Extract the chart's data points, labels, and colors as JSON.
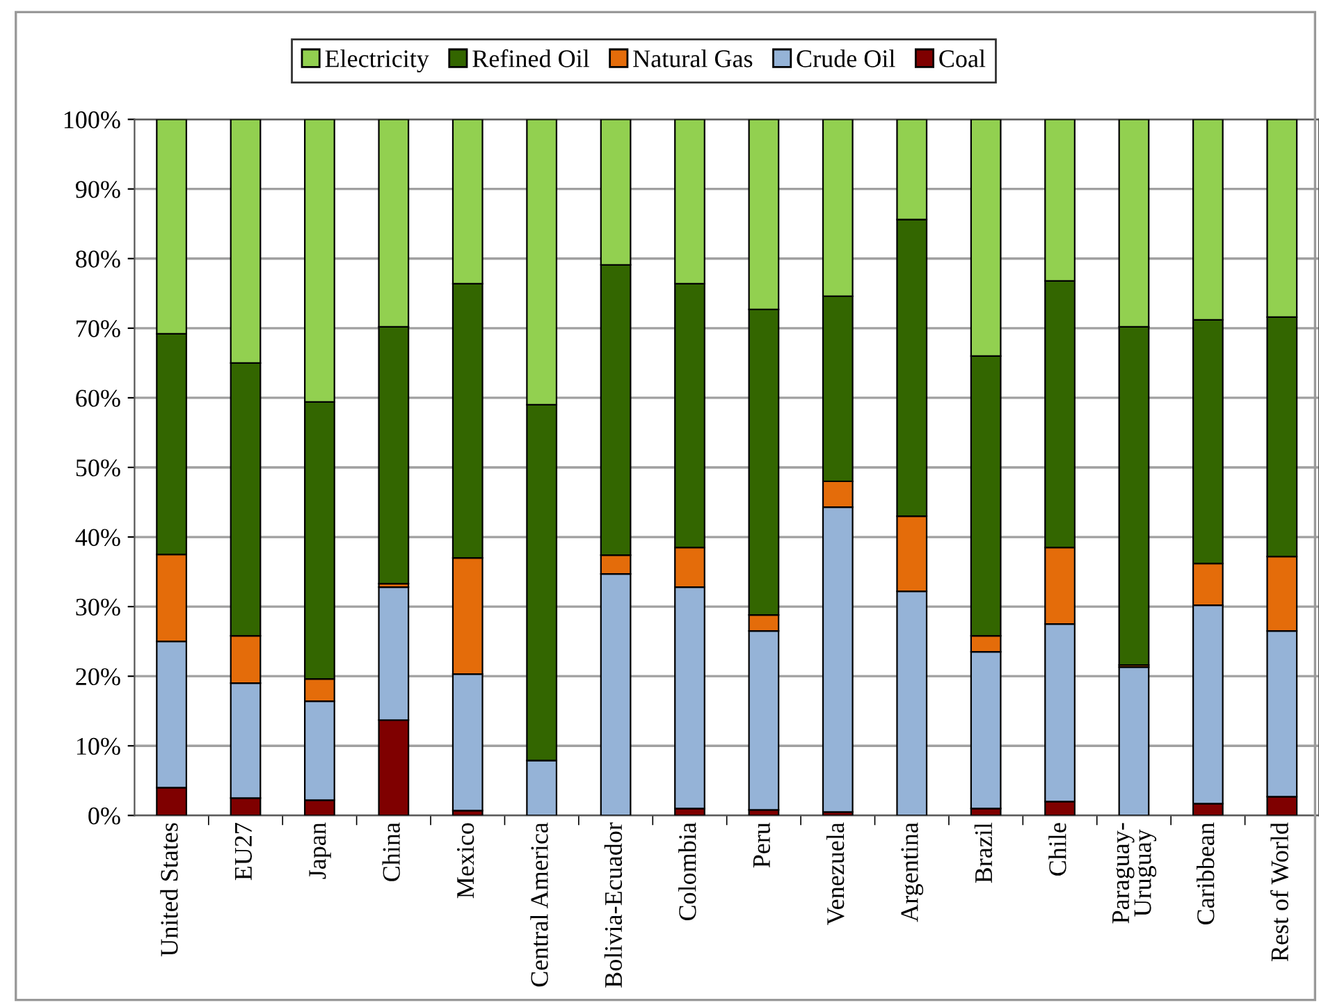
{
  "chart_data": {
    "type": "bar",
    "stacked": true,
    "categories": [
      "United States",
      "EU27",
      "Japan",
      "China",
      "Mexico",
      "Central America",
      "Bolivia-Ecuador",
      "Colombia",
      "Peru",
      "Venezuela",
      "Argentina",
      "Brazil",
      "Chile",
      "Paraguay-\nUruguay",
      "Caribbean",
      "Rest of World"
    ],
    "series": [
      {
        "name": "Coal",
        "color": "#7f0000",
        "values": [
          4,
          2.5,
          2.2,
          13.7,
          0.7,
          null,
          0,
          1,
          0.8,
          0.5,
          null,
          1,
          2,
          0,
          1.7,
          2.7
        ]
      },
      {
        "name": "Crude Oil",
        "color": "#95b3d7",
        "values": [
          21,
          16.5,
          14.2,
          19.1,
          19.6,
          7.9,
          34.7,
          31.8,
          25.7,
          43.8,
          32.2,
          22.5,
          25.5,
          21.3,
          28.5,
          23.8
        ]
      },
      {
        "name": "Natural Gas",
        "color": "#e46c0a",
        "values": [
          12.5,
          6.8,
          3.2,
          0.5,
          16.7,
          0,
          2.7,
          5.7,
          2.3,
          3.7,
          10.8,
          2.3,
          11,
          0.3,
          6,
          10.7
        ]
      },
      {
        "name": "Refined Oil",
        "color": "#336600",
        "values": [
          31.7,
          39.2,
          39.8,
          36.9,
          39.4,
          51.1,
          41.7,
          37.9,
          43.9,
          26.6,
          42.6,
          40.2,
          38.3,
          48.6,
          35,
          34.4
        ]
      },
      {
        "name": "Electricity",
        "color": "#92d050",
        "values": [
          30.8,
          35,
          40.6,
          29.8,
          23.6,
          41,
          20.9,
          23.6,
          27.3,
          25.4,
          14.4,
          34,
          23.2,
          29.8,
          28.8,
          28.4
        ]
      }
    ],
    "ylim": [
      0,
      100
    ],
    "yticks": [
      {
        "value": 0,
        "label": "0%"
      },
      {
        "value": 10,
        "label": "10%"
      },
      {
        "value": 20,
        "label": "20%"
      },
      {
        "value": 30,
        "label": "30%"
      },
      {
        "value": 40,
        "label": "40%"
      },
      {
        "value": 50,
        "label": "50%"
      },
      {
        "value": 60,
        "label": "60%"
      },
      {
        "value": 70,
        "label": "70%"
      },
      {
        "value": 80,
        "label": "80%"
      },
      {
        "value": 90,
        "label": "90%"
      },
      {
        "value": 100,
        "label": "100%"
      }
    ],
    "grid": "y",
    "legend": "top"
  }
}
